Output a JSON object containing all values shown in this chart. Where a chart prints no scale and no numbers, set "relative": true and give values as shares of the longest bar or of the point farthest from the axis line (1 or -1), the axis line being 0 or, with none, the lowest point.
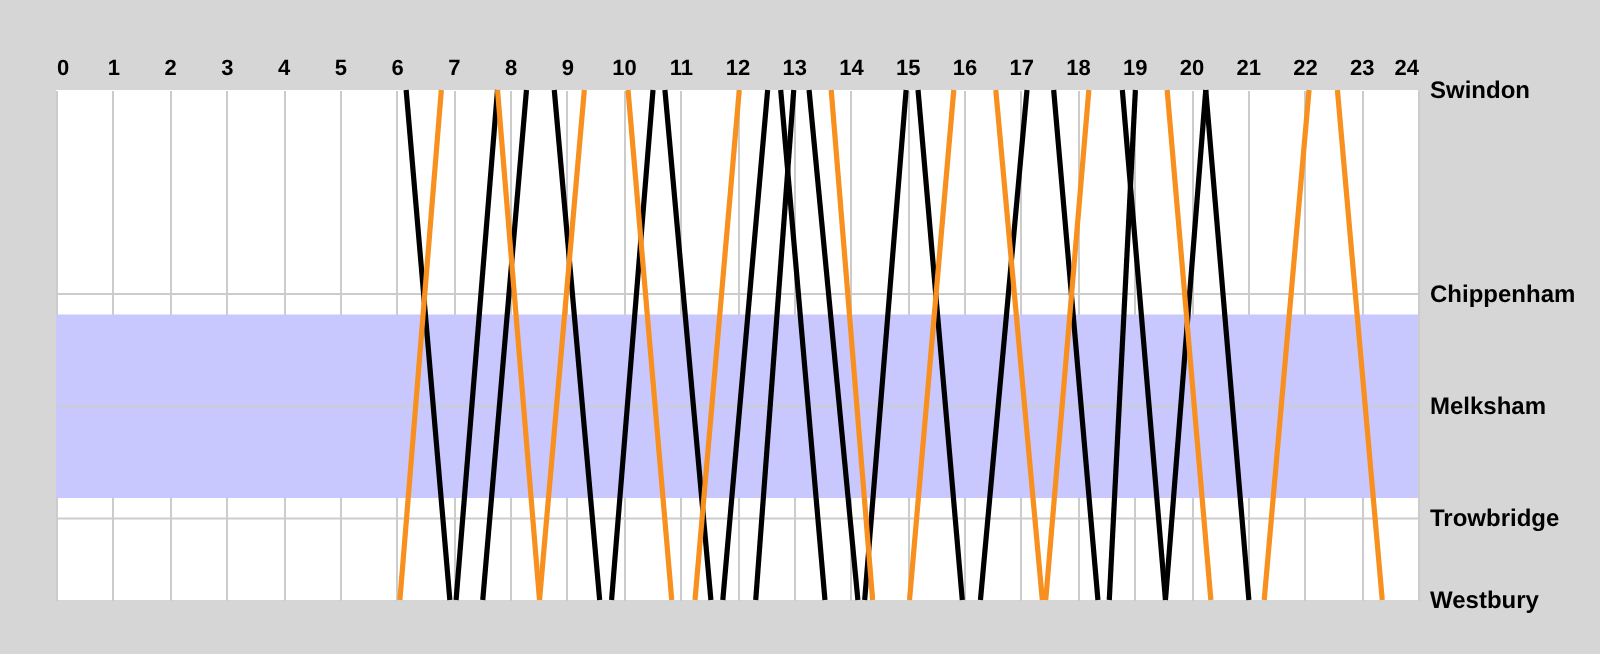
{
  "chart_data": {
    "type": "line",
    "relative": true,
    "xlim": [
      0,
      24
    ],
    "xticks": [
      0,
      1,
      2,
      3,
      4,
      5,
      6,
      7,
      8,
      9,
      10,
      11,
      12,
      13,
      14,
      15,
      16,
      17,
      18,
      19,
      20,
      21,
      22,
      23,
      24
    ],
    "grid": "x",
    "legend": false,
    "marker": "none",
    "line_style": "solid",
    "bands": [
      {
        "axis": "y",
        "from": 0.2,
        "to": 0.56,
        "color": "#c8c8ff"
      }
    ],
    "annotations": [
      "Swindon",
      "Westbury"
    ],
    "ref_lines": [
      {
        "axis": "y",
        "value": 0.6,
        "label": "Chippenham",
        "color": "#cccccc"
      },
      {
        "axis": "y",
        "value": 0.38,
        "label": "Melksham",
        "color": "#cccccc"
      },
      {
        "axis": "y",
        "value": 0.16,
        "label": "Trowbridge",
        "color": "#cccccc"
      }
    ],
    "series": [
      {
        "color": "#000000",
        "x": [
          6.17,
          6.94
        ],
        "values": [
          1,
          0
        ]
      },
      {
        "color": "#000000",
        "x": [
          7.05,
          7.78
        ],
        "values": [
          0,
          1
        ]
      },
      {
        "color": "#000000",
        "x": [
          7.52,
          8.29
        ],
        "values": [
          0,
          1
        ]
      },
      {
        "color": "#000000",
        "x": [
          8.78,
          9.58
        ],
        "values": [
          1,
          0
        ]
      },
      {
        "color": "#000000",
        "x": [
          9.79,
          10.52
        ],
        "values": [
          0,
          1
        ]
      },
      {
        "color": "#000000",
        "x": [
          10.73,
          11.54
        ],
        "values": [
          1,
          0
        ]
      },
      {
        "color": "#000000",
        "x": [
          11.75,
          12.54
        ],
        "values": [
          0,
          1
        ]
      },
      {
        "color": "#000000",
        "x": [
          12.33,
          13.0
        ],
        "values": [
          0,
          1
        ]
      },
      {
        "color": "#000000",
        "x": [
          12.77,
          13.55
        ],
        "values": [
          1,
          0
        ]
      },
      {
        "color": "#000000",
        "x": [
          13.27,
          14.13
        ],
        "values": [
          1,
          0
        ]
      },
      {
        "color": "#000000",
        "x": [
          14.25,
          14.98
        ],
        "values": [
          0,
          1
        ]
      },
      {
        "color": "#000000",
        "x": [
          15.19,
          15.97
        ],
        "values": [
          1,
          0
        ]
      },
      {
        "color": "#000000",
        "x": [
          16.29,
          17.11
        ],
        "values": [
          0,
          1
        ]
      },
      {
        "color": "#000000",
        "x": [
          17.58,
          18.36
        ],
        "values": [
          1,
          0
        ]
      },
      {
        "color": "#000000",
        "x": [
          18.56,
          19.02
        ],
        "values": [
          0,
          1
        ]
      },
      {
        "color": "#000000",
        "x": [
          18.79,
          19.55
        ],
        "values": [
          1,
          0
        ]
      },
      {
        "color": "#000000",
        "x": [
          19.55,
          20.26
        ],
        "values": [
          0,
          1
        ]
      },
      {
        "color": "#000000",
        "x": [
          20.26,
          21.02
        ],
        "values": [
          1,
          0
        ]
      },
      {
        "color": "#f7901e",
        "x": [
          6.06,
          6.79
        ],
        "values": [
          0,
          1
        ]
      },
      {
        "color": "#f7901e",
        "x": [
          7.78,
          8.52
        ],
        "values": [
          1,
          0
        ]
      },
      {
        "color": "#f7901e",
        "x": [
          8.52,
          9.31
        ],
        "values": [
          0,
          1
        ]
      },
      {
        "color": "#f7901e",
        "x": [
          10.08,
          10.85
        ],
        "values": [
          1,
          0
        ]
      },
      {
        "color": "#f7901e",
        "x": [
          11.26,
          12.04
        ],
        "values": [
          0,
          1
        ]
      },
      {
        "color": "#f7901e",
        "x": [
          13.66,
          14.39
        ],
        "values": [
          1,
          0
        ]
      },
      {
        "color": "#f7901e",
        "x": [
          15.04,
          15.82
        ],
        "values": [
          0,
          1
        ]
      },
      {
        "color": "#f7901e",
        "x": [
          16.56,
          17.38
        ],
        "values": [
          1,
          0
        ]
      },
      {
        "color": "#f7901e",
        "x": [
          17.44,
          18.2
        ],
        "values": [
          0,
          1
        ]
      },
      {
        "color": "#f7901e",
        "x": [
          19.58,
          20.35
        ],
        "values": [
          1,
          0
        ]
      },
      {
        "color": "#f7901e",
        "x": [
          21.29,
          22.08
        ],
        "values": [
          0,
          1
        ]
      },
      {
        "color": "#f7901e",
        "x": [
          22.58,
          23.37
        ],
        "values": [
          1,
          0
        ]
      }
    ]
  }
}
